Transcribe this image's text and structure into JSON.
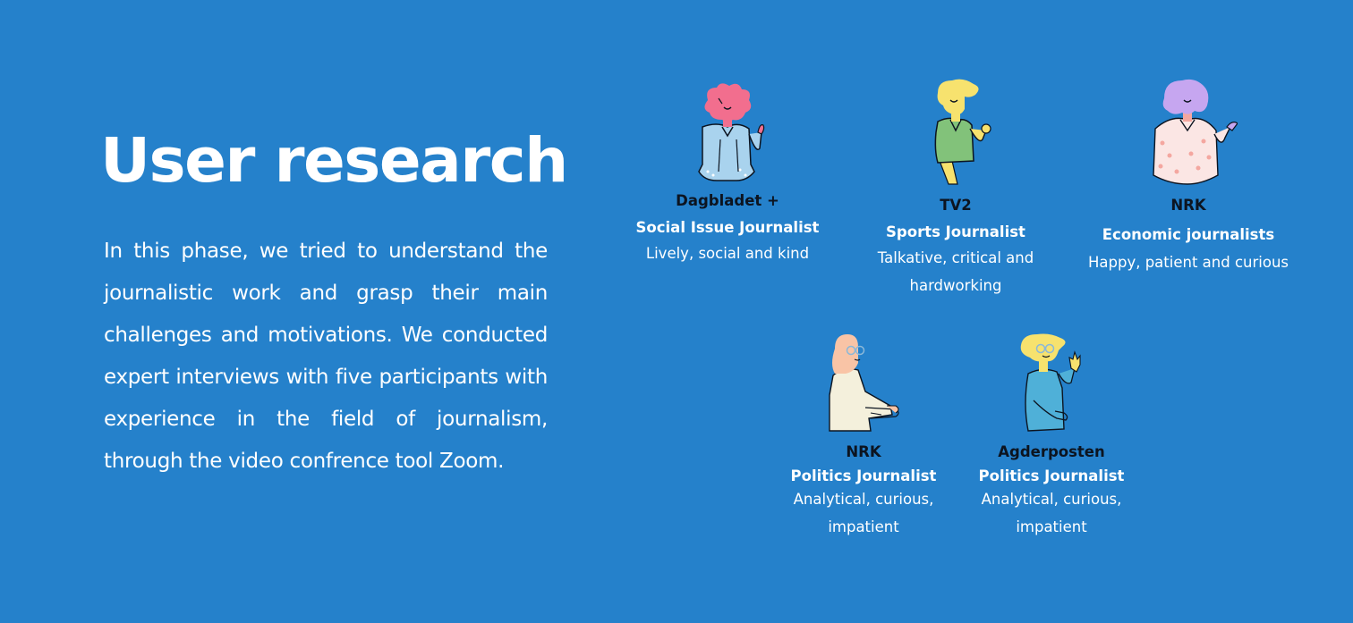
{
  "title": "User research",
  "intro": "In this phase, we tried to understand the journalistic work and grasp their main challenges and motivations. We conducted expert interviews with five participants with experience in the field of journalism, through the video confrence tool Zoom.",
  "personas": [
    {
      "organization": "Dagbladet +",
      "role": "Social Issue Journalist",
      "traits": "Lively, social and kind",
      "icon": "pink-haired-person-icon"
    },
    {
      "organization": "TV2",
      "role": "Sports Journalist",
      "traits": "Talkative, critical and hardworking",
      "icon": "yellow-haired-person-icon"
    },
    {
      "organization": "NRK",
      "role": "Economic journalists",
      "traits": "Happy, patient and curious",
      "icon": "purple-haired-person-icon"
    },
    {
      "organization": "NRK",
      "role": "Politics Journalist",
      "traits": "Analytical, curious, impatient",
      "icon": "blonde-woman-with-glasses-icon"
    },
    {
      "organization": "Agderposten",
      "role": "Politics Journalist",
      "traits": "Analytical, curious, impatient",
      "icon": "waving-person-with-glasses-icon"
    }
  ],
  "colors": {
    "background": "#2581cb",
    "text": "#ffffff",
    "organization_text": "#0c1420"
  }
}
